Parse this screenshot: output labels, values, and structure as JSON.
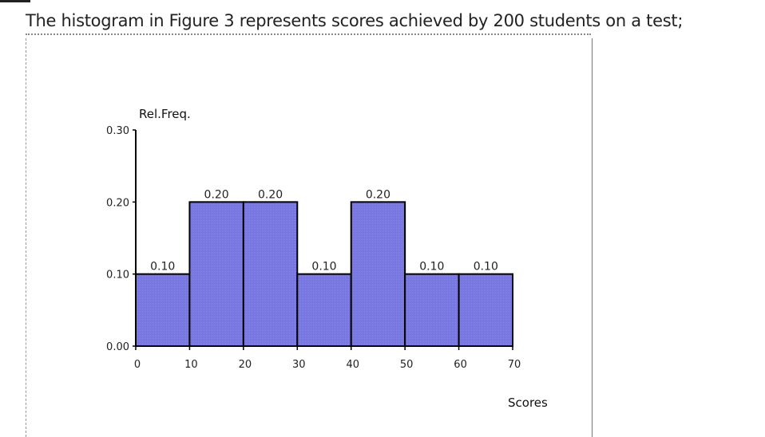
{
  "question": {
    "text": "The histogram in Figure 3 represents scores achieved by 200 students on a test;"
  },
  "chart_data": {
    "type": "bar",
    "ylabel": "Rel.Freq.",
    "xlabel": "Scores",
    "bins": [
      [
        0,
        10
      ],
      [
        10,
        20
      ],
      [
        20,
        30
      ],
      [
        30,
        40
      ],
      [
        40,
        50
      ],
      [
        50,
        60
      ],
      [
        60,
        70
      ]
    ],
    "values": [
      0.1,
      0.2,
      0.2,
      0.1,
      0.2,
      0.1,
      0.1
    ],
    "value_labels": [
      "0.10",
      "0.20",
      "0.20",
      "0.10",
      "0.20",
      "0.10",
      "0.10"
    ],
    "xticks": [
      0,
      10,
      20,
      30,
      40,
      50,
      60,
      70
    ],
    "xtick_labels": [
      "0",
      "10",
      "20",
      "30",
      "40",
      "50",
      "60",
      "70"
    ],
    "yticks": [
      0.0,
      0.1,
      0.2,
      0.3
    ],
    "ytick_labels": [
      "0.00",
      "0.10",
      "0.20",
      "0.30"
    ],
    "xlim": [
      0,
      70
    ],
    "ylim": [
      0,
      0.3
    ],
    "grid": false,
    "bar_color": "#7070ee",
    "edge_color": "#000000"
  }
}
